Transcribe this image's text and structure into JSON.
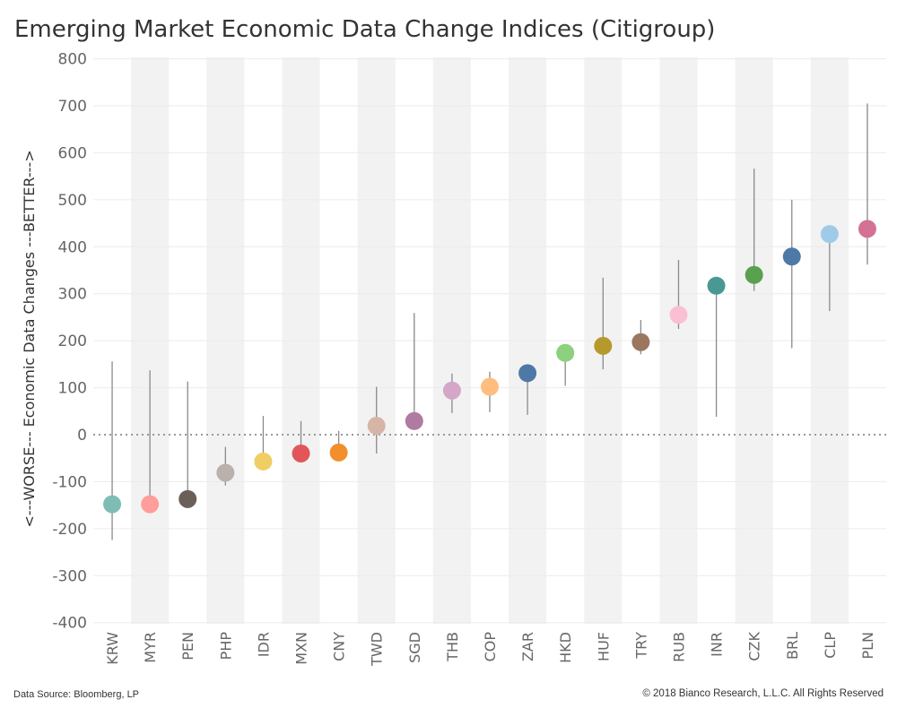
{
  "title": "Emerging Market Economic Data Change Indices (Citigroup)",
  "footer": {
    "source": "Data Source: Bloomberg, LP",
    "copyright": "© 2018 Bianco Research, L.L.C. All Rights Reserved"
  },
  "chart_data": {
    "type": "scatter",
    "ylabel": "<---WORSE--- Economic Data Changes ---BETTER--->",
    "ylim": [
      -420,
      800
    ],
    "yticks": [
      800,
      700,
      600,
      500,
      400,
      300,
      200,
      100,
      0,
      -100,
      -200,
      -300,
      -400
    ],
    "reference_line": 0,
    "grid": true,
    "alternating_bands": true,
    "points": [
      {
        "category": "KRW",
        "value": -148,
        "range": [
          -224,
          156
        ],
        "color": "#7ebdb4"
      },
      {
        "category": "MYR",
        "value": -148,
        "range": [
          -148,
          137
        ],
        "color": "#ff9d9a"
      },
      {
        "category": "PEN",
        "value": -137,
        "range": [
          -137,
          113
        ],
        "color": "#6b5f5a"
      },
      {
        "category": "PHP",
        "value": -81,
        "range": [
          -108,
          -26
        ],
        "color": "#bab0ac"
      },
      {
        "category": "IDR",
        "value": -57,
        "range": [
          -57,
          40
        ],
        "color": "#f1ce63"
      },
      {
        "category": "MXN",
        "value": -40,
        "range": [
          -40,
          29
        ],
        "color": "#e15759"
      },
      {
        "category": "CNY",
        "value": -38,
        "range": [
          -38,
          8
        ],
        "color": "#f28e2b"
      },
      {
        "category": "TWD",
        "value": 19,
        "range": [
          -40,
          102
        ],
        "color": "#d7b5a6"
      },
      {
        "category": "SGD",
        "value": 29,
        "range": [
          29,
          259
        ],
        "color": "#b07aa1"
      },
      {
        "category": "THB",
        "value": 94,
        "range": [
          46,
          130
        ],
        "color": "#d4a6c8"
      },
      {
        "category": "COP",
        "value": 102,
        "range": [
          48,
          134
        ],
        "color": "#ffbe7d"
      },
      {
        "category": "ZAR",
        "value": 131,
        "range": [
          42,
          131
        ],
        "color": "#4e79a7"
      },
      {
        "category": "HKD",
        "value": 174,
        "range": [
          104,
          174
        ],
        "color": "#8cd17d"
      },
      {
        "category": "HUF",
        "value": 189,
        "range": [
          139,
          334
        ],
        "color": "#b6992d"
      },
      {
        "category": "TRY",
        "value": 197,
        "range": [
          171,
          244
        ],
        "color": "#9d7660"
      },
      {
        "category": "RUB",
        "value": 255,
        "range": [
          225,
          372
        ],
        "color": "#fabfd2"
      },
      {
        "category": "INR",
        "value": 317,
        "range": [
          38,
          317
        ],
        "color": "#499894"
      },
      {
        "category": "CZK",
        "value": 340,
        "range": [
          306,
          566
        ],
        "color": "#59a14f"
      },
      {
        "category": "BRL",
        "value": 379,
        "range": [
          184,
          500
        ],
        "color": "#4e79a7"
      },
      {
        "category": "CLP",
        "value": 427,
        "range": [
          263,
          427
        ],
        "color": "#a0cbe8"
      },
      {
        "category": "PLN",
        "value": 438,
        "range": [
          362,
          705
        ],
        "color": "#d37295"
      }
    ]
  }
}
